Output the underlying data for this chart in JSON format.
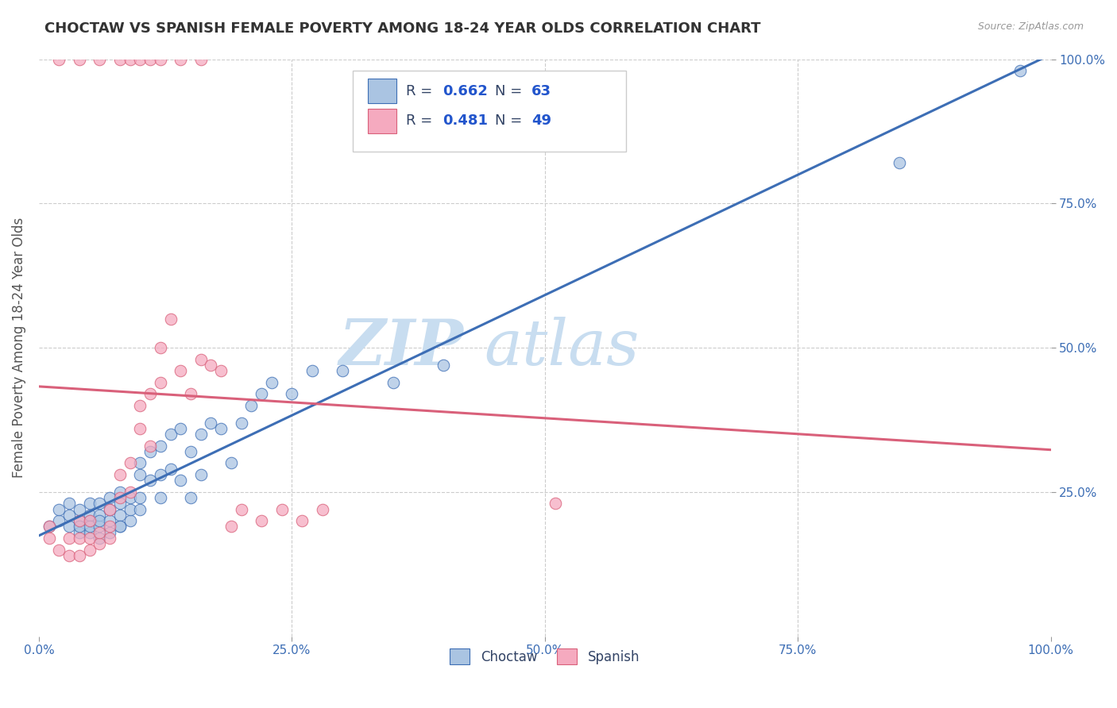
{
  "title": "CHOCTAW VS SPANISH FEMALE POVERTY AMONG 18-24 YEAR OLDS CORRELATION CHART",
  "source": "Source: ZipAtlas.com",
  "ylabel": "Female Poverty Among 18-24 Year Olds",
  "xlim": [
    0,
    1.0
  ],
  "ylim": [
    0,
    1.0
  ],
  "xtick_labels": [
    "0.0%",
    "25.0%",
    "50.0%",
    "75.0%",
    "100.0%"
  ],
  "xtick_values": [
    0.0,
    0.25,
    0.5,
    0.75,
    1.0
  ],
  "ytick_values": [
    0.0,
    0.25,
    0.5,
    0.75,
    1.0
  ],
  "ytick_labels_right": [
    "25.0%",
    "50.0%",
    "75.0%",
    "100.0%"
  ],
  "choctaw_color": "#aac4e2",
  "spanish_color": "#f5aabf",
  "choctaw_line_color": "#3d6eb5",
  "spanish_line_color": "#d9607a",
  "choctaw_R": 0.662,
  "choctaw_N": 63,
  "spanish_R": 0.481,
  "spanish_N": 49,
  "legend_text_color": "#334466",
  "legend_value_color": "#2255cc",
  "watermark": "ZIPatlas",
  "watermark_color": "#cce0f5",
  "background_color": "#ffffff",
  "grid_color": "#cccccc",
  "tick_color": "#3d6eb5",
  "choctaw_x": [
    0.01,
    0.02,
    0.02,
    0.03,
    0.03,
    0.03,
    0.04,
    0.04,
    0.04,
    0.04,
    0.05,
    0.05,
    0.05,
    0.05,
    0.05,
    0.06,
    0.06,
    0.06,
    0.06,
    0.06,
    0.07,
    0.07,
    0.07,
    0.07,
    0.08,
    0.08,
    0.08,
    0.08,
    0.08,
    0.09,
    0.09,
    0.09,
    0.1,
    0.1,
    0.1,
    0.1,
    0.11,
    0.11,
    0.12,
    0.12,
    0.12,
    0.13,
    0.13,
    0.14,
    0.14,
    0.15,
    0.15,
    0.16,
    0.16,
    0.17,
    0.18,
    0.19,
    0.2,
    0.21,
    0.22,
    0.23,
    0.25,
    0.27,
    0.3,
    0.35,
    0.4,
    0.85,
    0.97
  ],
  "choctaw_y": [
    0.19,
    0.2,
    0.22,
    0.19,
    0.21,
    0.23,
    0.18,
    0.2,
    0.22,
    0.19,
    0.18,
    0.2,
    0.21,
    0.23,
    0.19,
    0.17,
    0.19,
    0.21,
    0.23,
    0.2,
    0.18,
    0.2,
    0.22,
    0.24,
    0.19,
    0.21,
    0.23,
    0.25,
    0.19,
    0.2,
    0.22,
    0.24,
    0.28,
    0.3,
    0.24,
    0.22,
    0.32,
    0.27,
    0.33,
    0.28,
    0.24,
    0.35,
    0.29,
    0.36,
    0.27,
    0.32,
    0.24,
    0.35,
    0.28,
    0.37,
    0.36,
    0.3,
    0.37,
    0.4,
    0.42,
    0.44,
    0.42,
    0.46,
    0.46,
    0.44,
    0.47,
    0.82,
    0.98
  ],
  "spanish_x": [
    0.01,
    0.01,
    0.02,
    0.02,
    0.03,
    0.03,
    0.04,
    0.04,
    0.04,
    0.05,
    0.05,
    0.05,
    0.05,
    0.06,
    0.06,
    0.06,
    0.07,
    0.07,
    0.07,
    0.08,
    0.08,
    0.09,
    0.09,
    0.1,
    0.1,
    0.11,
    0.11,
    0.12,
    0.12,
    0.13,
    0.14,
    0.15,
    0.16,
    0.17,
    0.18,
    0.19,
    0.2,
    0.22,
    0.24,
    0.26,
    0.28,
    0.51,
    0.0,
    0.0,
    0.0,
    0.01,
    0.02,
    0.03,
    0.04
  ],
  "spanish_y": [
    0.17,
    0.19,
    0.15,
    0.18,
    0.14,
    0.17,
    0.14,
    0.17,
    0.2,
    0.15,
    0.17,
    0.2,
    0.22,
    0.16,
    0.18,
    0.21,
    0.17,
    0.19,
    0.22,
    0.24,
    0.28,
    0.25,
    0.3,
    0.36,
    0.4,
    0.33,
    0.42,
    0.44,
    0.5,
    0.55,
    0.46,
    0.42,
    0.48,
    0.47,
    0.46,
    0.19,
    0.22,
    0.2,
    0.22,
    0.2,
    0.22,
    0.23,
    1.0,
    1.0,
    1.0,
    1.0,
    1.0,
    1.0,
    1.0
  ]
}
